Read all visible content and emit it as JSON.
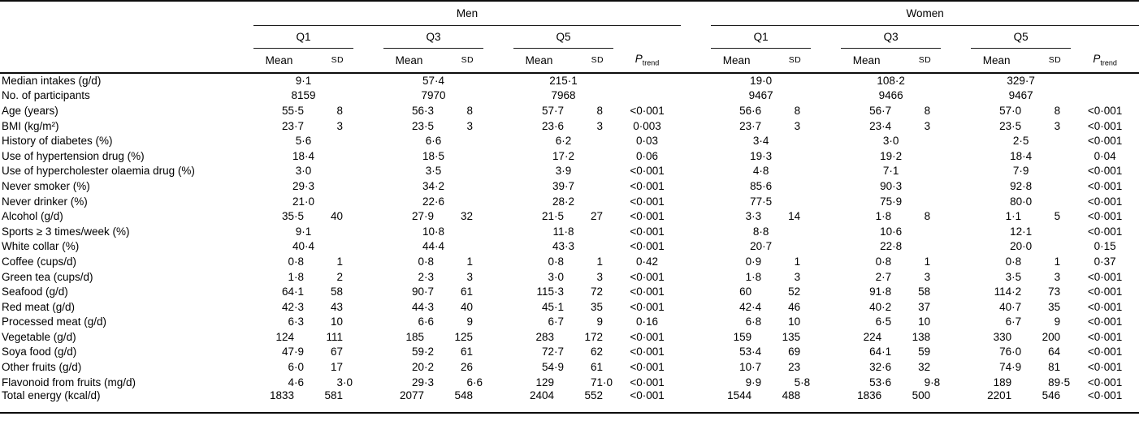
{
  "table": {
    "gender_groups": [
      "Men",
      "Women"
    ],
    "quintile_labels": [
      "Q1",
      "Q3",
      "Q5"
    ],
    "stat_headers": {
      "mean": "Mean",
      "sd": "SD"
    },
    "p_header": {
      "symbol": "P",
      "subscript": "trend"
    },
    "rows": [
      {
        "label": "Median intakes (g/d)",
        "men": [
          [
            "9·1"
          ],
          [
            "57·4"
          ],
          [
            "215·1"
          ],
          ""
        ],
        "women": [
          [
            "19·0"
          ],
          [
            "108·2"
          ],
          [
            "329·7"
          ],
          ""
        ]
      },
      {
        "label": "No. of participants",
        "men": [
          [
            "8159"
          ],
          [
            "7970"
          ],
          [
            "7968"
          ],
          ""
        ],
        "women": [
          [
            "9467"
          ],
          [
            "9466"
          ],
          [
            "9467"
          ],
          ""
        ]
      },
      {
        "label": "Age (years)",
        "men": [
          [
            "55·5",
            "8"
          ],
          [
            "56·3",
            "8"
          ],
          [
            "57·7",
            "8"
          ],
          "<0·001"
        ],
        "women": [
          [
            "56·6",
            "8"
          ],
          [
            "56·7",
            "8"
          ],
          [
            "57·0",
            "8"
          ],
          "<0·001"
        ]
      },
      {
        "label": "BMI (kg/m²)",
        "men": [
          [
            "23·7",
            "3"
          ],
          [
            "23·5",
            "3"
          ],
          [
            "23·6",
            "3"
          ],
          "0·003"
        ],
        "women": [
          [
            "23·7",
            "3"
          ],
          [
            "23·4",
            "3"
          ],
          [
            "23·5",
            "3"
          ],
          "<0·001"
        ]
      },
      {
        "label": "History of diabetes (%)",
        "men": [
          [
            "5·6"
          ],
          [
            "6·6"
          ],
          [
            "6·2"
          ],
          "0·03"
        ],
        "women": [
          [
            "3·4"
          ],
          [
            "3·0"
          ],
          [
            "2·5"
          ],
          "<0·001"
        ]
      },
      {
        "label": "Use of hypertension drug (%)",
        "men": [
          [
            "18·4"
          ],
          [
            "18·5"
          ],
          [
            "17·2"
          ],
          "0·06"
        ],
        "women": [
          [
            "19·3"
          ],
          [
            "19·2"
          ],
          [
            "18·4"
          ],
          "0·04"
        ]
      },
      {
        "label": "Use of hypercholester olaemia drug (%)",
        "men": [
          [
            "3·0"
          ],
          [
            "3·5"
          ],
          [
            "3·9"
          ],
          "<0·001"
        ],
        "women": [
          [
            "4·8"
          ],
          [
            "7·1"
          ],
          [
            "7·9"
          ],
          "<0·001"
        ]
      },
      {
        "label": "Never smoker (%)",
        "men": [
          [
            "29·3"
          ],
          [
            "34·2"
          ],
          [
            "39·7"
          ],
          "<0·001"
        ],
        "women": [
          [
            "85·6"
          ],
          [
            "90·3"
          ],
          [
            "92·8"
          ],
          "<0·001"
        ]
      },
      {
        "label": "Never drinker (%)",
        "men": [
          [
            "21·0"
          ],
          [
            "22·6"
          ],
          [
            "28·2"
          ],
          "<0·001"
        ],
        "women": [
          [
            "77·5"
          ],
          [
            "75·9"
          ],
          [
            "80·0"
          ],
          "<0·001"
        ]
      },
      {
        "label": "Alcohol (g/d)",
        "men": [
          [
            "35·5",
            "40"
          ],
          [
            "27·9",
            "32"
          ],
          [
            "21·5",
            "27"
          ],
          "<0·001"
        ],
        "women": [
          [
            "3·3",
            "14"
          ],
          [
            "1·8",
            "8"
          ],
          [
            "1·1",
            "5"
          ],
          "<0·001"
        ]
      },
      {
        "label": "Sports ≥ 3 times/week (%)",
        "men": [
          [
            "9·1"
          ],
          [
            "10·8"
          ],
          [
            "11·8"
          ],
          "<0·001"
        ],
        "women": [
          [
            "8·8"
          ],
          [
            "10·6"
          ],
          [
            "12·1"
          ],
          "<0·001"
        ]
      },
      {
        "label": "White collar (%)",
        "men": [
          [
            "40·4"
          ],
          [
            "44·4"
          ],
          [
            "43·3"
          ],
          "<0·001"
        ],
        "women": [
          [
            "20·7"
          ],
          [
            "22·8"
          ],
          [
            "20·0"
          ],
          "0·15"
        ]
      },
      {
        "label": "Coffee (cups/d)",
        "men": [
          [
            "0·8",
            "1"
          ],
          [
            "0·8",
            "1"
          ],
          [
            "0·8",
            "1"
          ],
          "0·42"
        ],
        "women": [
          [
            "0·9",
            "1"
          ],
          [
            "0·8",
            "1"
          ],
          [
            "0·8",
            "1"
          ],
          "0·37"
        ]
      },
      {
        "label": "Green tea (cups/d)",
        "men": [
          [
            "1·8",
            "2"
          ],
          [
            "2·3",
            "3"
          ],
          [
            "3·0",
            "3"
          ],
          "<0·001"
        ],
        "women": [
          [
            "1·8",
            "3"
          ],
          [
            "2·7",
            "3"
          ],
          [
            "3·5",
            "3"
          ],
          "<0·001"
        ]
      },
      {
        "label": "Seafood (g/d)",
        "men": [
          [
            "64·1",
            "58"
          ],
          [
            "90·7",
            "61"
          ],
          [
            "115·3",
            "72"
          ],
          "<0·001"
        ],
        "women": [
          [
            "60",
            "52"
          ],
          [
            "91·8",
            "58"
          ],
          [
            "114·2",
            "73"
          ],
          "<0·001"
        ]
      },
      {
        "label": "Red meat (g/d)",
        "men": [
          [
            "42·3",
            "43"
          ],
          [
            "44·3",
            "40"
          ],
          [
            "45·1",
            "35"
          ],
          "<0·001"
        ],
        "women": [
          [
            "42·4",
            "46"
          ],
          [
            "40·2",
            "37"
          ],
          [
            "40·7",
            "35"
          ],
          "<0·001"
        ]
      },
      {
        "label": "Processed meat (g/d)",
        "men": [
          [
            "6·3",
            "10"
          ],
          [
            "6·6",
            "9"
          ],
          [
            "6·7",
            "9"
          ],
          "0·16"
        ],
        "women": [
          [
            "6·8",
            "10"
          ],
          [
            "6·5",
            "10"
          ],
          [
            "6·7",
            "9"
          ],
          "<0·001"
        ]
      },
      {
        "label": "Vegetable (g/d)",
        "men": [
          [
            "124",
            "111"
          ],
          [
            "185",
            "125"
          ],
          [
            "283",
            "172"
          ],
          "<0·001"
        ],
        "women": [
          [
            "159",
            "135"
          ],
          [
            "224",
            "138"
          ],
          [
            "330",
            "200"
          ],
          "<0·001"
        ]
      },
      {
        "label": "Soya food (g/d)",
        "men": [
          [
            "47·9",
            "67"
          ],
          [
            "59·2",
            "61"
          ],
          [
            "72·7",
            "62"
          ],
          "<0·001"
        ],
        "women": [
          [
            "53·4",
            "69"
          ],
          [
            "64·1",
            "59"
          ],
          [
            "76·0",
            "64"
          ],
          "<0·001"
        ]
      },
      {
        "label": "Other fruits (g/d)",
        "men": [
          [
            "6·0",
            "17"
          ],
          [
            "20·2",
            "26"
          ],
          [
            "54·9",
            "61"
          ],
          "<0·001"
        ],
        "women": [
          [
            "10·7",
            "23"
          ],
          [
            "32·6",
            "32"
          ],
          [
            "74·9",
            "81"
          ],
          "<0·001"
        ]
      },
      {
        "label": "Flavonoid from fruits (mg/d)",
        "men": [
          [
            "4·6",
            "3·0"
          ],
          [
            "29·3",
            "6·6"
          ],
          [
            "129",
            "71·0"
          ],
          "<0·001"
        ],
        "women": [
          [
            "9·9",
            "5·8"
          ],
          [
            "53·6",
            "9·8"
          ],
          [
            "189",
            "89·5"
          ],
          "<0·001"
        ]
      },
      {
        "label": "Total energy (kcal/d)",
        "men": [
          [
            "1833",
            "581"
          ],
          [
            "2077",
            "548"
          ],
          [
            "2404",
            "552"
          ],
          "<0·001"
        ],
        "women": [
          [
            "1544",
            "488"
          ],
          [
            "1836",
            "500"
          ],
          [
            "2201",
            "546"
          ],
          "<0·001"
        ]
      }
    ]
  }
}
